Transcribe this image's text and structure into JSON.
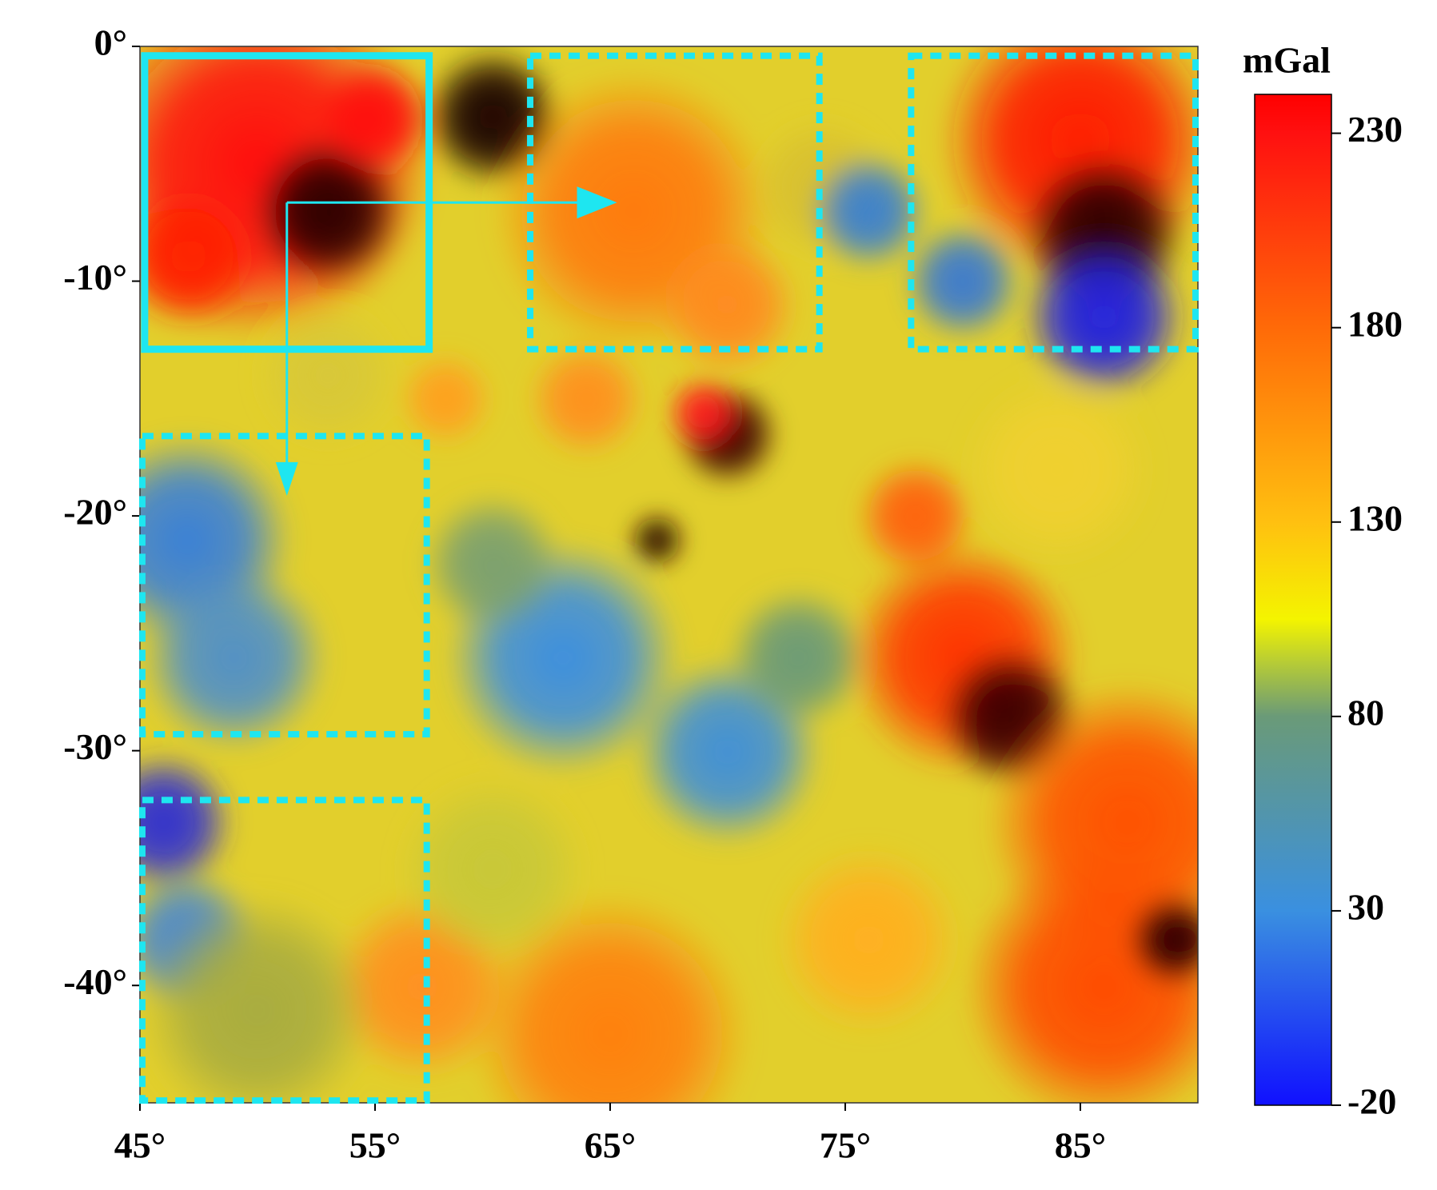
{
  "chart_data": {
    "type": "heatmap",
    "xlim": [
      45,
      90
    ],
    "ylim": [
      -45,
      0
    ],
    "xticks": [
      {
        "value": 45,
        "label": "45°"
      },
      {
        "value": 55,
        "label": "55°"
      },
      {
        "value": 65,
        "label": "65°"
      },
      {
        "value": 75,
        "label": "75°"
      },
      {
        "value": 85,
        "label": "85°"
      }
    ],
    "yticks": [
      {
        "value": 0,
        "label": "0°"
      },
      {
        "value": -10,
        "label": "-10°"
      },
      {
        "value": -20,
        "label": "-20°"
      },
      {
        "value": -30,
        "label": "-30°"
      },
      {
        "value": -40,
        "label": "-40°"
      }
    ],
    "colorbar": {
      "title": "mGal",
      "lim": [
        -20,
        240
      ],
      "ticks": [
        230,
        180,
        130,
        80,
        30,
        -20
      ],
      "colorscale": [
        {
          "value": -20,
          "color": "#1010ff"
        },
        {
          "value": 30,
          "color": "#3a90e0"
        },
        {
          "value": 80,
          "color": "#6a9a78"
        },
        {
          "value": 105,
          "color": "#f4f400"
        },
        {
          "value": 130,
          "color": "#ffc010"
        },
        {
          "value": 180,
          "color": "#ff6a08"
        },
        {
          "value": 230,
          "color": "#ff1010"
        },
        {
          "value": 240,
          "color": "#ff0000"
        }
      ]
    },
    "region_color": "#1ee6f0",
    "regions": [
      {
        "style": "solid",
        "xlim": [
          45.2,
          57.3
        ],
        "ylim": [
          -12.9,
          -0.4
        ]
      },
      {
        "style": "dashed",
        "xlim": [
          61.6,
          73.9
        ],
        "ylim": [
          -12.9,
          -0.4
        ]
      },
      {
        "style": "dashed",
        "xlim": [
          77.8,
          89.9
        ],
        "ylim": [
          -12.9,
          -0.4
        ]
      },
      {
        "style": "dashed",
        "xlim": [
          45.1,
          57.2
        ],
        "ylim": [
          -29.3,
          -16.6
        ]
      },
      {
        "style": "dashed",
        "xlim": [
          45.1,
          57.2
        ],
        "ylim": [
          -44.9,
          -32.1
        ]
      }
    ]
  }
}
